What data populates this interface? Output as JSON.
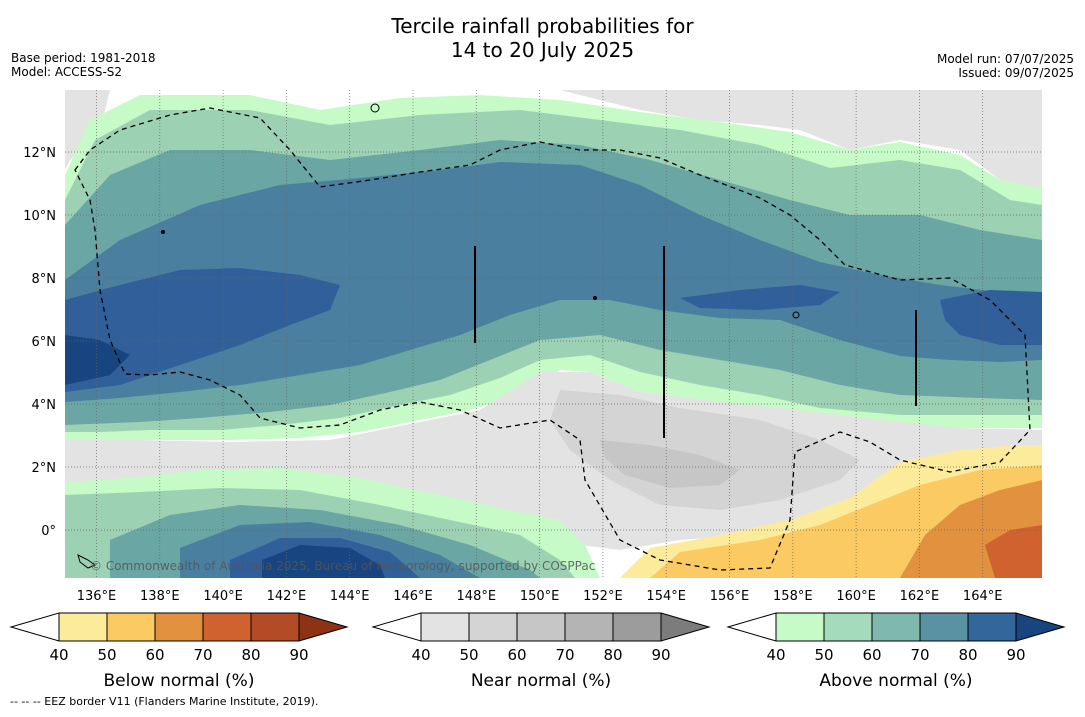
{
  "title": {
    "line1": "Tercile rainfall probabilities for",
    "line2": "14 to 20 July 2025"
  },
  "meta_left": {
    "base_period": "Base period: 1981-2018",
    "model": "Model: ACCESS-S2"
  },
  "meta_right": {
    "model_run": "Model run: 07/07/2025",
    "issued": "Issued: 09/07/2025"
  },
  "map": {
    "lat_labels": [
      "12°N",
      "10°N",
      "8°N",
      "6°N",
      "4°N",
      "2°N",
      "0°"
    ],
    "lon_labels": [
      "136°E",
      "138°E",
      "140°E",
      "142°E",
      "144°E",
      "146°E",
      "148°E",
      "150°E",
      "152°E",
      "154°E",
      "156°E",
      "158°E",
      "160°E",
      "162°E",
      "164°E"
    ],
    "watermark": "© Commonwealth of Australia 2025, Bureau of Meteorology, supported by COSPPac",
    "colors": {
      "ocean_base": "#ffffff",
      "near_40": "#e3e3e3",
      "near_50": "#d4d4d4",
      "near_60": "#c6c6c6",
      "below_40": "#fdeb9c",
      "below_50": "#fcca62",
      "below_60": "#e2913f",
      "below_70": "#d0622f",
      "above_40": "#c6fac7",
      "above_50": "#9dd1b4",
      "above_60": "#6aa6a3",
      "above_70": "#4a7fa0",
      "above_80": "#315f99",
      "above_90": "#18457f"
    }
  },
  "colorbars": [
    {
      "name": "below",
      "label": "Below normal (%)",
      "ticks": [
        "40",
        "50",
        "60",
        "70",
        "80",
        "90"
      ],
      "colors": [
        "#fdeb9c",
        "#fcca62",
        "#e2913f",
        "#d0622f",
        "#b34b26",
        "#8d3215"
      ]
    },
    {
      "name": "near",
      "label": "Near normal (%)",
      "ticks": [
        "40",
        "50",
        "60",
        "70",
        "80",
        "90"
      ],
      "colors": [
        "#e3e3e3",
        "#d4d4d4",
        "#c6c6c6",
        "#b4b4b4",
        "#9c9c9c",
        "#7c7c7c"
      ]
    },
    {
      "name": "above",
      "label": "Above normal (%)",
      "ticks": [
        "40",
        "50",
        "60",
        "70",
        "80",
        "90"
      ],
      "colors": [
        "#c6fac7",
        "#a4dbbd",
        "#7fb8ad",
        "#5a92a4",
        "#33669a",
        "#18457f"
      ]
    }
  ],
  "footer": "--  --  -- EEZ border V11 (Flanders Marine Institute, 2019)."
}
